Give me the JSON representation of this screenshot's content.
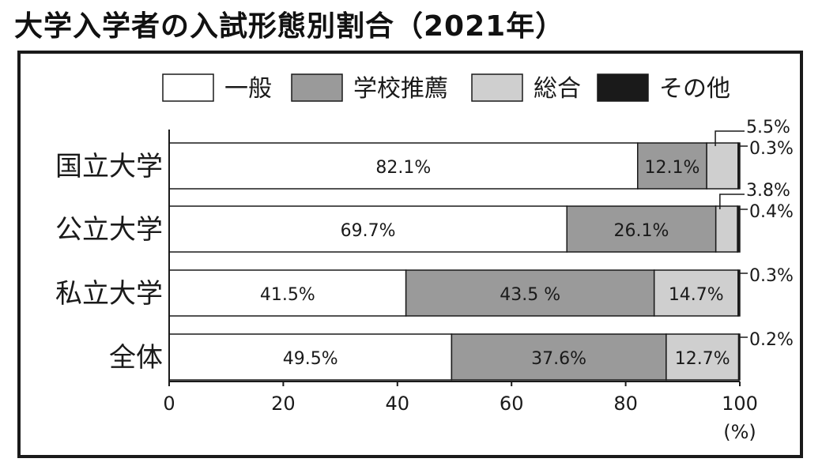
{
  "title": "大学入学者の入試形態別割合（2021年）",
  "chart_data": {
    "type": "bar",
    "orientation": "horizontal",
    "stacked": true,
    "title": "大学入学者の入試形態別割合（2021年）",
    "categories": [
      "国立大学",
      "公立大学",
      "私立大学",
      "全体"
    ],
    "series": [
      {
        "name": "一般",
        "color": "#ffffff",
        "values": [
          82.1,
          69.7,
          41.5,
          49.5
        ],
        "labels": [
          "82.1%",
          "69.7%",
          "41.5%",
          "49.5%"
        ]
      },
      {
        "name": "学校推薦",
        "color": "#9a9a9a",
        "values": [
          12.1,
          26.1,
          43.5,
          37.6
        ],
        "labels": [
          "12.1%",
          "26.1%",
          "43.5 %",
          "37.6%"
        ]
      },
      {
        "name": "総合",
        "color": "#cfcfcf",
        "values": [
          5.5,
          3.8,
          14.7,
          12.7
        ],
        "labels": [
          "5.5%",
          "3.8%",
          "14.7%",
          "12.7%"
        ]
      },
      {
        "name": "その他",
        "color": "#1a1a1a",
        "values": [
          0.3,
          0.4,
          0.3,
          0.2
        ],
        "labels": [
          "0.3%",
          "0.4%",
          "0.3%",
          "0.2%"
        ]
      }
    ],
    "xlim": [
      0,
      100
    ],
    "xticks": [
      "0",
      "20",
      "40",
      "60",
      "80",
      "100"
    ],
    "x_unit": "(%)",
    "legend_position": "top"
  }
}
